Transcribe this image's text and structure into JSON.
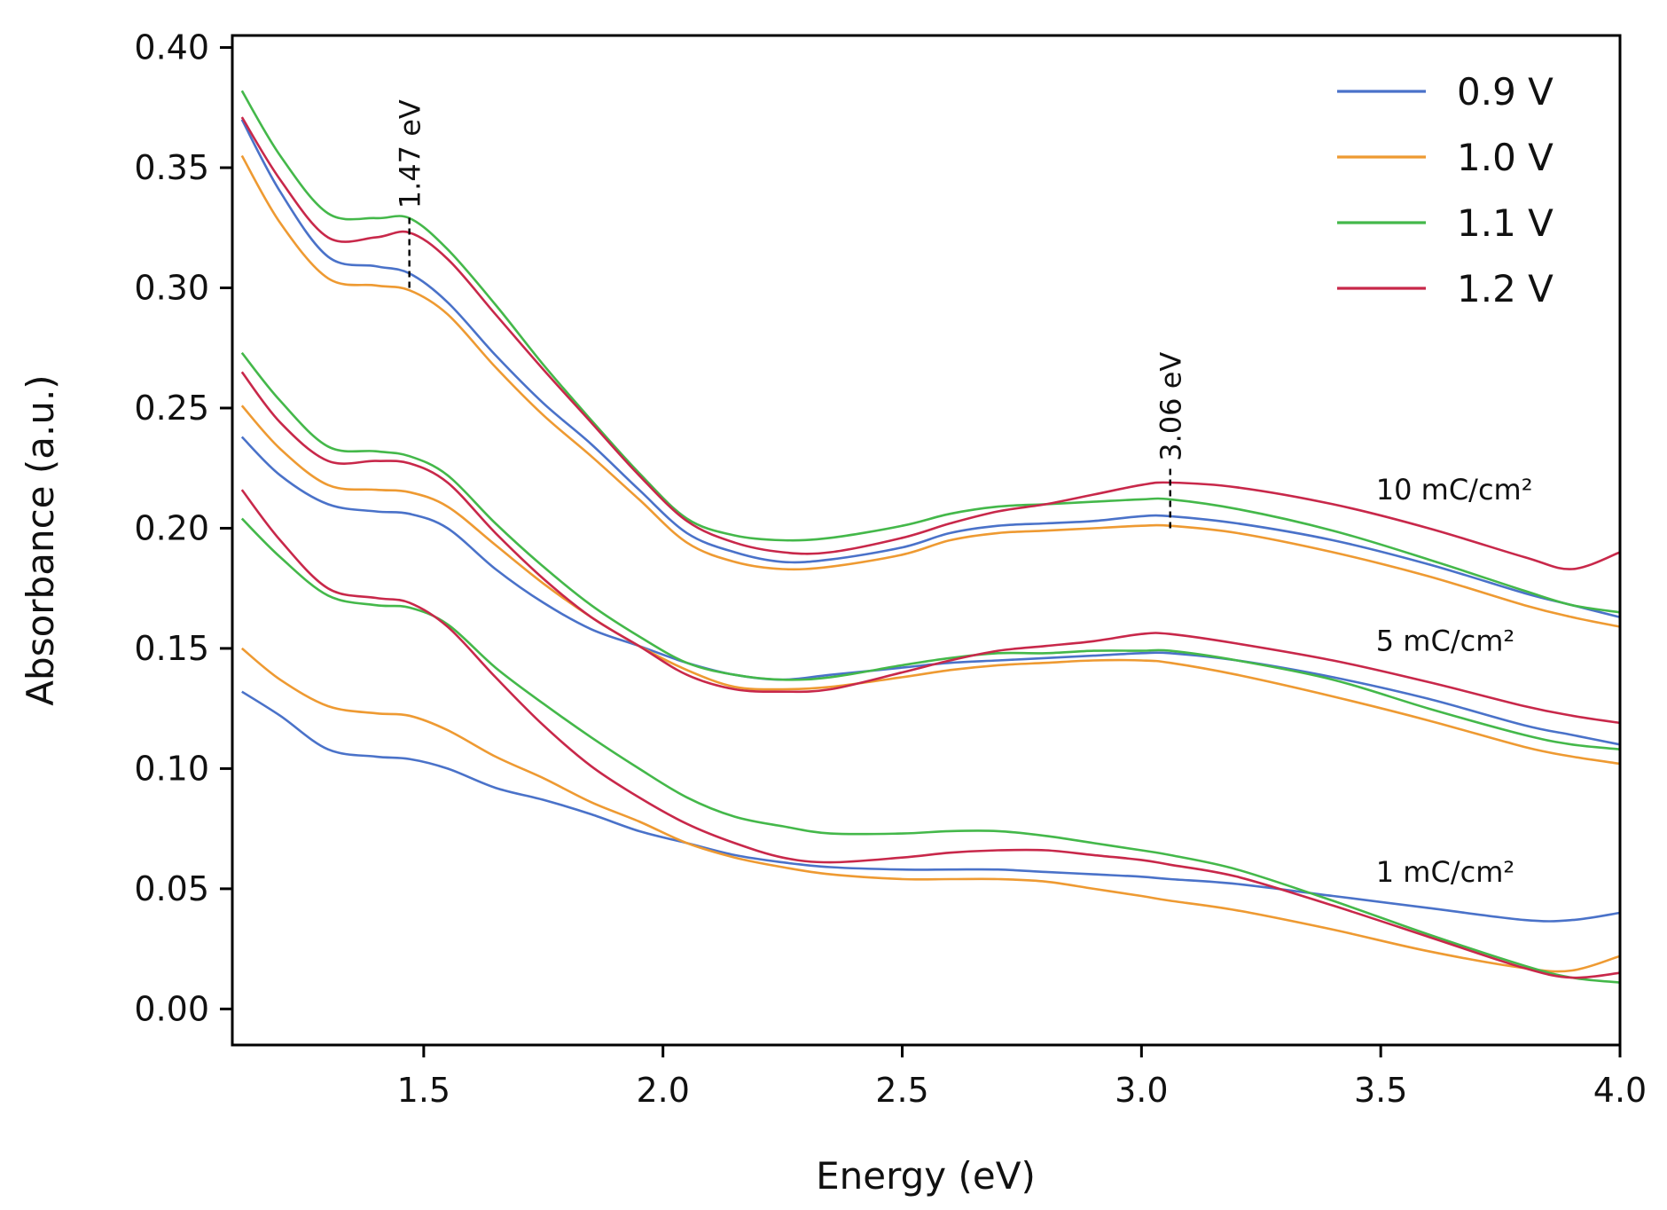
{
  "chart_data": {
    "type": "line",
    "xlabel": "Energy (eV)",
    "ylabel": "Absorbance (a.u.)",
    "xlim": [
      1.1,
      4.0
    ],
    "ylim": [
      -0.015,
      0.405
    ],
    "x_ticks": [
      1.5,
      2.0,
      2.5,
      3.0,
      3.5,
      4.0
    ],
    "x_tick_labels": [
      "1.5",
      "2.0",
      "2.5",
      "3.0",
      "3.5",
      "4.0"
    ],
    "y_ticks": [
      0.0,
      0.05,
      0.1,
      0.15,
      0.2,
      0.25,
      0.3,
      0.35,
      0.4
    ],
    "y_tick_labels": [
      "0.00",
      "0.05",
      "0.10",
      "0.15",
      "0.20",
      "0.25",
      "0.30",
      "0.35",
      "0.40"
    ],
    "legend": {
      "placement": "top-right",
      "entries": [
        {
          "label": "0.9 V",
          "color": "#4a72c9"
        },
        {
          "label": "1.0 V",
          "color": "#ee9a32"
        },
        {
          "label": "1.1 V",
          "color": "#44b84a"
        },
        {
          "label": "1.2 V",
          "color": "#c8284a"
        }
      ]
    },
    "annotations": [
      {
        "text": "1.47 eV",
        "x": 1.47,
        "y_from": 0.3,
        "y_to": 0.33
      },
      {
        "text": "3.06 eV",
        "x": 3.06,
        "y_from": 0.2,
        "y_to": 0.225
      }
    ],
    "group_labels": [
      {
        "text": "10 mC/cm²",
        "x": 3.49,
        "y": 0.212
      },
      {
        "text": "5 mC/cm²",
        "x": 3.49,
        "y": 0.149
      },
      {
        "text": "1 mC/cm²",
        "x": 3.49,
        "y": 0.053
      }
    ],
    "x": [
      1.12,
      1.2,
      1.3,
      1.4,
      1.47,
      1.55,
      1.65,
      1.75,
      1.85,
      1.95,
      2.05,
      2.15,
      2.25,
      2.35,
      2.5,
      2.6,
      2.7,
      2.8,
      2.9,
      3.0,
      3.06,
      3.2,
      3.4,
      3.6,
      3.8,
      3.9,
      4.0
    ],
    "series": [
      {
        "name": "10 mC/cm² – 0.9 V",
        "group": "10 mC/cm²",
        "voltage": "0.9 V",
        "color": "#4a72c9",
        "values": [
          0.37,
          0.34,
          0.313,
          0.309,
          0.306,
          0.294,
          0.272,
          0.252,
          0.235,
          0.216,
          0.198,
          0.19,
          0.186,
          0.187,
          0.192,
          0.198,
          0.201,
          0.202,
          0.203,
          0.205,
          0.205,
          0.202,
          0.195,
          0.185,
          0.173,
          0.168,
          0.163
        ]
      },
      {
        "name": "10 mC/cm² – 1.0 V",
        "group": "10 mC/cm²",
        "voltage": "1.0 V",
        "color": "#ee9a32",
        "values": [
          0.355,
          0.327,
          0.304,
          0.301,
          0.299,
          0.289,
          0.267,
          0.247,
          0.23,
          0.212,
          0.194,
          0.186,
          0.183,
          0.184,
          0.189,
          0.195,
          0.198,
          0.199,
          0.2,
          0.201,
          0.201,
          0.198,
          0.19,
          0.18,
          0.168,
          0.163,
          0.159
        ]
      },
      {
        "name": "10 mC/cm² – 1.1 V",
        "group": "10 mC/cm²",
        "voltage": "1.1 V",
        "color": "#44b84a",
        "values": [
          0.382,
          0.355,
          0.331,
          0.329,
          0.329,
          0.316,
          0.293,
          0.268,
          0.245,
          0.223,
          0.204,
          0.197,
          0.195,
          0.196,
          0.201,
          0.206,
          0.209,
          0.21,
          0.211,
          0.212,
          0.212,
          0.208,
          0.199,
          0.187,
          0.174,
          0.168,
          0.165
        ]
      },
      {
        "name": "10 mC/cm² – 1.2 V",
        "group": "10 mC/cm²",
        "voltage": "1.2 V",
        "color": "#c8284a",
        "values": [
          0.371,
          0.345,
          0.321,
          0.321,
          0.323,
          0.312,
          0.289,
          0.266,
          0.244,
          0.222,
          0.203,
          0.194,
          0.19,
          0.19,
          0.196,
          0.202,
          0.207,
          0.21,
          0.214,
          0.218,
          0.219,
          0.217,
          0.21,
          0.2,
          0.188,
          0.183,
          0.19
        ]
      },
      {
        "name": "5 mC/cm² – 0.9 V",
        "group": "5 mC/cm²",
        "voltage": "0.9 V",
        "color": "#4a72c9",
        "values": [
          0.238,
          0.222,
          0.21,
          0.207,
          0.206,
          0.2,
          0.183,
          0.169,
          0.158,
          0.151,
          0.144,
          0.139,
          0.137,
          0.139,
          0.142,
          0.144,
          0.145,
          0.146,
          0.147,
          0.148,
          0.148,
          0.145,
          0.138,
          0.129,
          0.118,
          0.114,
          0.11
        ]
      },
      {
        "name": "5 mC/cm² – 1.0 V",
        "group": "5 mC/cm²",
        "voltage": "1.0 V",
        "color": "#ee9a32",
        "values": [
          0.251,
          0.233,
          0.218,
          0.216,
          0.215,
          0.209,
          0.193,
          0.177,
          0.163,
          0.151,
          0.141,
          0.134,
          0.133,
          0.134,
          0.138,
          0.141,
          0.143,
          0.144,
          0.145,
          0.145,
          0.144,
          0.139,
          0.13,
          0.12,
          0.109,
          0.105,
          0.102
        ]
      },
      {
        "name": "5 mC/cm² – 1.1 V",
        "group": "5 mC/cm²",
        "voltage": "1.1 V",
        "color": "#44b84a",
        "values": [
          0.273,
          0.253,
          0.234,
          0.232,
          0.23,
          0.222,
          0.202,
          0.184,
          0.168,
          0.155,
          0.144,
          0.139,
          0.137,
          0.138,
          0.143,
          0.146,
          0.148,
          0.148,
          0.149,
          0.149,
          0.149,
          0.145,
          0.137,
          0.125,
          0.114,
          0.11,
          0.108
        ]
      },
      {
        "name": "5 mC/cm² – 1.2 V",
        "group": "5 mC/cm²",
        "voltage": "1.2 V",
        "color": "#c8284a",
        "values": [
          0.265,
          0.244,
          0.228,
          0.228,
          0.227,
          0.219,
          0.198,
          0.179,
          0.163,
          0.151,
          0.139,
          0.133,
          0.132,
          0.133,
          0.14,
          0.145,
          0.149,
          0.151,
          0.153,
          0.156,
          0.156,
          0.152,
          0.145,
          0.136,
          0.126,
          0.122,
          0.119
        ]
      },
      {
        "name": "1 mC/cm² – 0.9 V",
        "group": "1 mC/cm²",
        "voltage": "0.9 V",
        "color": "#4a72c9",
        "values": [
          0.132,
          0.122,
          0.108,
          0.105,
          0.104,
          0.1,
          0.092,
          0.087,
          0.081,
          0.074,
          0.069,
          0.064,
          0.061,
          0.059,
          0.058,
          0.058,
          0.058,
          0.057,
          0.056,
          0.055,
          0.054,
          0.052,
          0.047,
          0.042,
          0.037,
          0.037,
          0.04
        ]
      },
      {
        "name": "1 mC/cm² – 1.0 V",
        "group": "1 mC/cm²",
        "voltage": "1.0 V",
        "color": "#ee9a32",
        "values": [
          0.15,
          0.137,
          0.126,
          0.123,
          0.122,
          0.116,
          0.105,
          0.096,
          0.086,
          0.078,
          0.069,
          0.063,
          0.059,
          0.056,
          0.054,
          0.054,
          0.054,
          0.053,
          0.05,
          0.047,
          0.045,
          0.041,
          0.033,
          0.024,
          0.017,
          0.016,
          0.022
        ]
      },
      {
        "name": "1 mC/cm² – 1.1 V",
        "group": "1 mC/cm²",
        "voltage": "1.1 V",
        "color": "#44b84a",
        "values": [
          0.204,
          0.188,
          0.172,
          0.168,
          0.167,
          0.16,
          0.142,
          0.127,
          0.113,
          0.1,
          0.088,
          0.08,
          0.076,
          0.073,
          0.073,
          0.074,
          0.074,
          0.072,
          0.069,
          0.066,
          0.064,
          0.058,
          0.045,
          0.031,
          0.018,
          0.013,
          0.011
        ]
      },
      {
        "name": "1 mC/cm² – 1.2 V",
        "group": "1 mC/cm²",
        "voltage": "1.2 V",
        "color": "#c8284a",
        "values": [
          0.216,
          0.195,
          0.175,
          0.171,
          0.169,
          0.159,
          0.138,
          0.118,
          0.101,
          0.088,
          0.077,
          0.069,
          0.063,
          0.061,
          0.063,
          0.065,
          0.066,
          0.066,
          0.064,
          0.062,
          0.06,
          0.055,
          0.043,
          0.03,
          0.017,
          0.013,
          0.015
        ]
      }
    ]
  }
}
